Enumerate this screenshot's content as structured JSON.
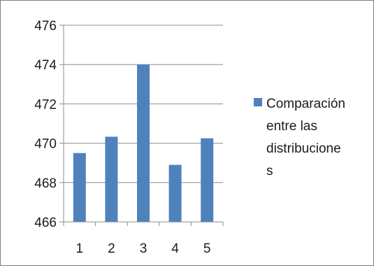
{
  "chart_data": {
    "type": "bar",
    "categories": [
      "1",
      "2",
      "3",
      "4",
      "5"
    ],
    "series": [
      {
        "name": "Comparación entre las distribuciones",
        "values": [
          469.5,
          470.33,
          474.0,
          468.9,
          470.25
        ],
        "color": "#4f81bd"
      }
    ],
    "ylim": [
      466,
      476
    ],
    "yticks": [
      466,
      468,
      470,
      472,
      474,
      476
    ],
    "grid": true,
    "legend": "right",
    "legend_lines": [
      "Comparación",
      "entre las",
      "distribucione",
      "s"
    ]
  }
}
